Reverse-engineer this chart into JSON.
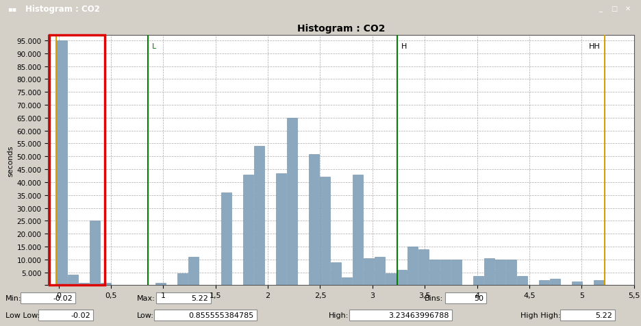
{
  "title": "Histogram : CO2",
  "ylabel": "seconds",
  "x_min": -0.02,
  "x_max": 5.22,
  "bins_count": 50,
  "y_max": 97.0,
  "y_tick_max": 95.0,
  "y_tick_step": 5.0,
  "bar_color": "#8ba8be",
  "bar_edgecolor": "#6a8aa8",
  "plot_bg_color": "#ffffff",
  "outer_bg_color": "#d4d0c8",
  "grid_color": "#aaaaaa",
  "line_low_low": -0.02,
  "line_low": 0.855555384785,
  "line_high": 3.23463996788,
  "line_high_high": 5.22,
  "line_color_yellow": "#d4a000",
  "line_color_green": "#008000",
  "red_rect_color": "#dd0000",
  "label_L": "L",
  "label_H": "H",
  "label_HH": "HH",
  "titlebar_color": "#6699cc",
  "titlebar_text": "Histogram : CO2",
  "info_min": "-0.02",
  "info_max": "5.22",
  "info_bins": "50",
  "info_lowlow": "-0.02",
  "info_low": "0.855555384785",
  "info_high": "3.23463996788",
  "info_highhigh": "5.22",
  "bar_heights": [
    95.0,
    4.0,
    1.0,
    25.0,
    1.0,
    0.0,
    0.0,
    0.0,
    0.0,
    1.0,
    0.0,
    4.5,
    11.0,
    0.0,
    0.0,
    36.0,
    0.0,
    43.0,
    54.0,
    0.0,
    43.5,
    65.0,
    0.0,
    51.0,
    42.0,
    9.0,
    3.0,
    43.0,
    10.5,
    11.0,
    4.5,
    6.0,
    15.0,
    14.0,
    10.0,
    10.0,
    10.0,
    0.0,
    3.5,
    10.5,
    10.0,
    10.0,
    3.5,
    0.0,
    2.0,
    2.5,
    0.0,
    1.5,
    0.0,
    2.0
  ]
}
